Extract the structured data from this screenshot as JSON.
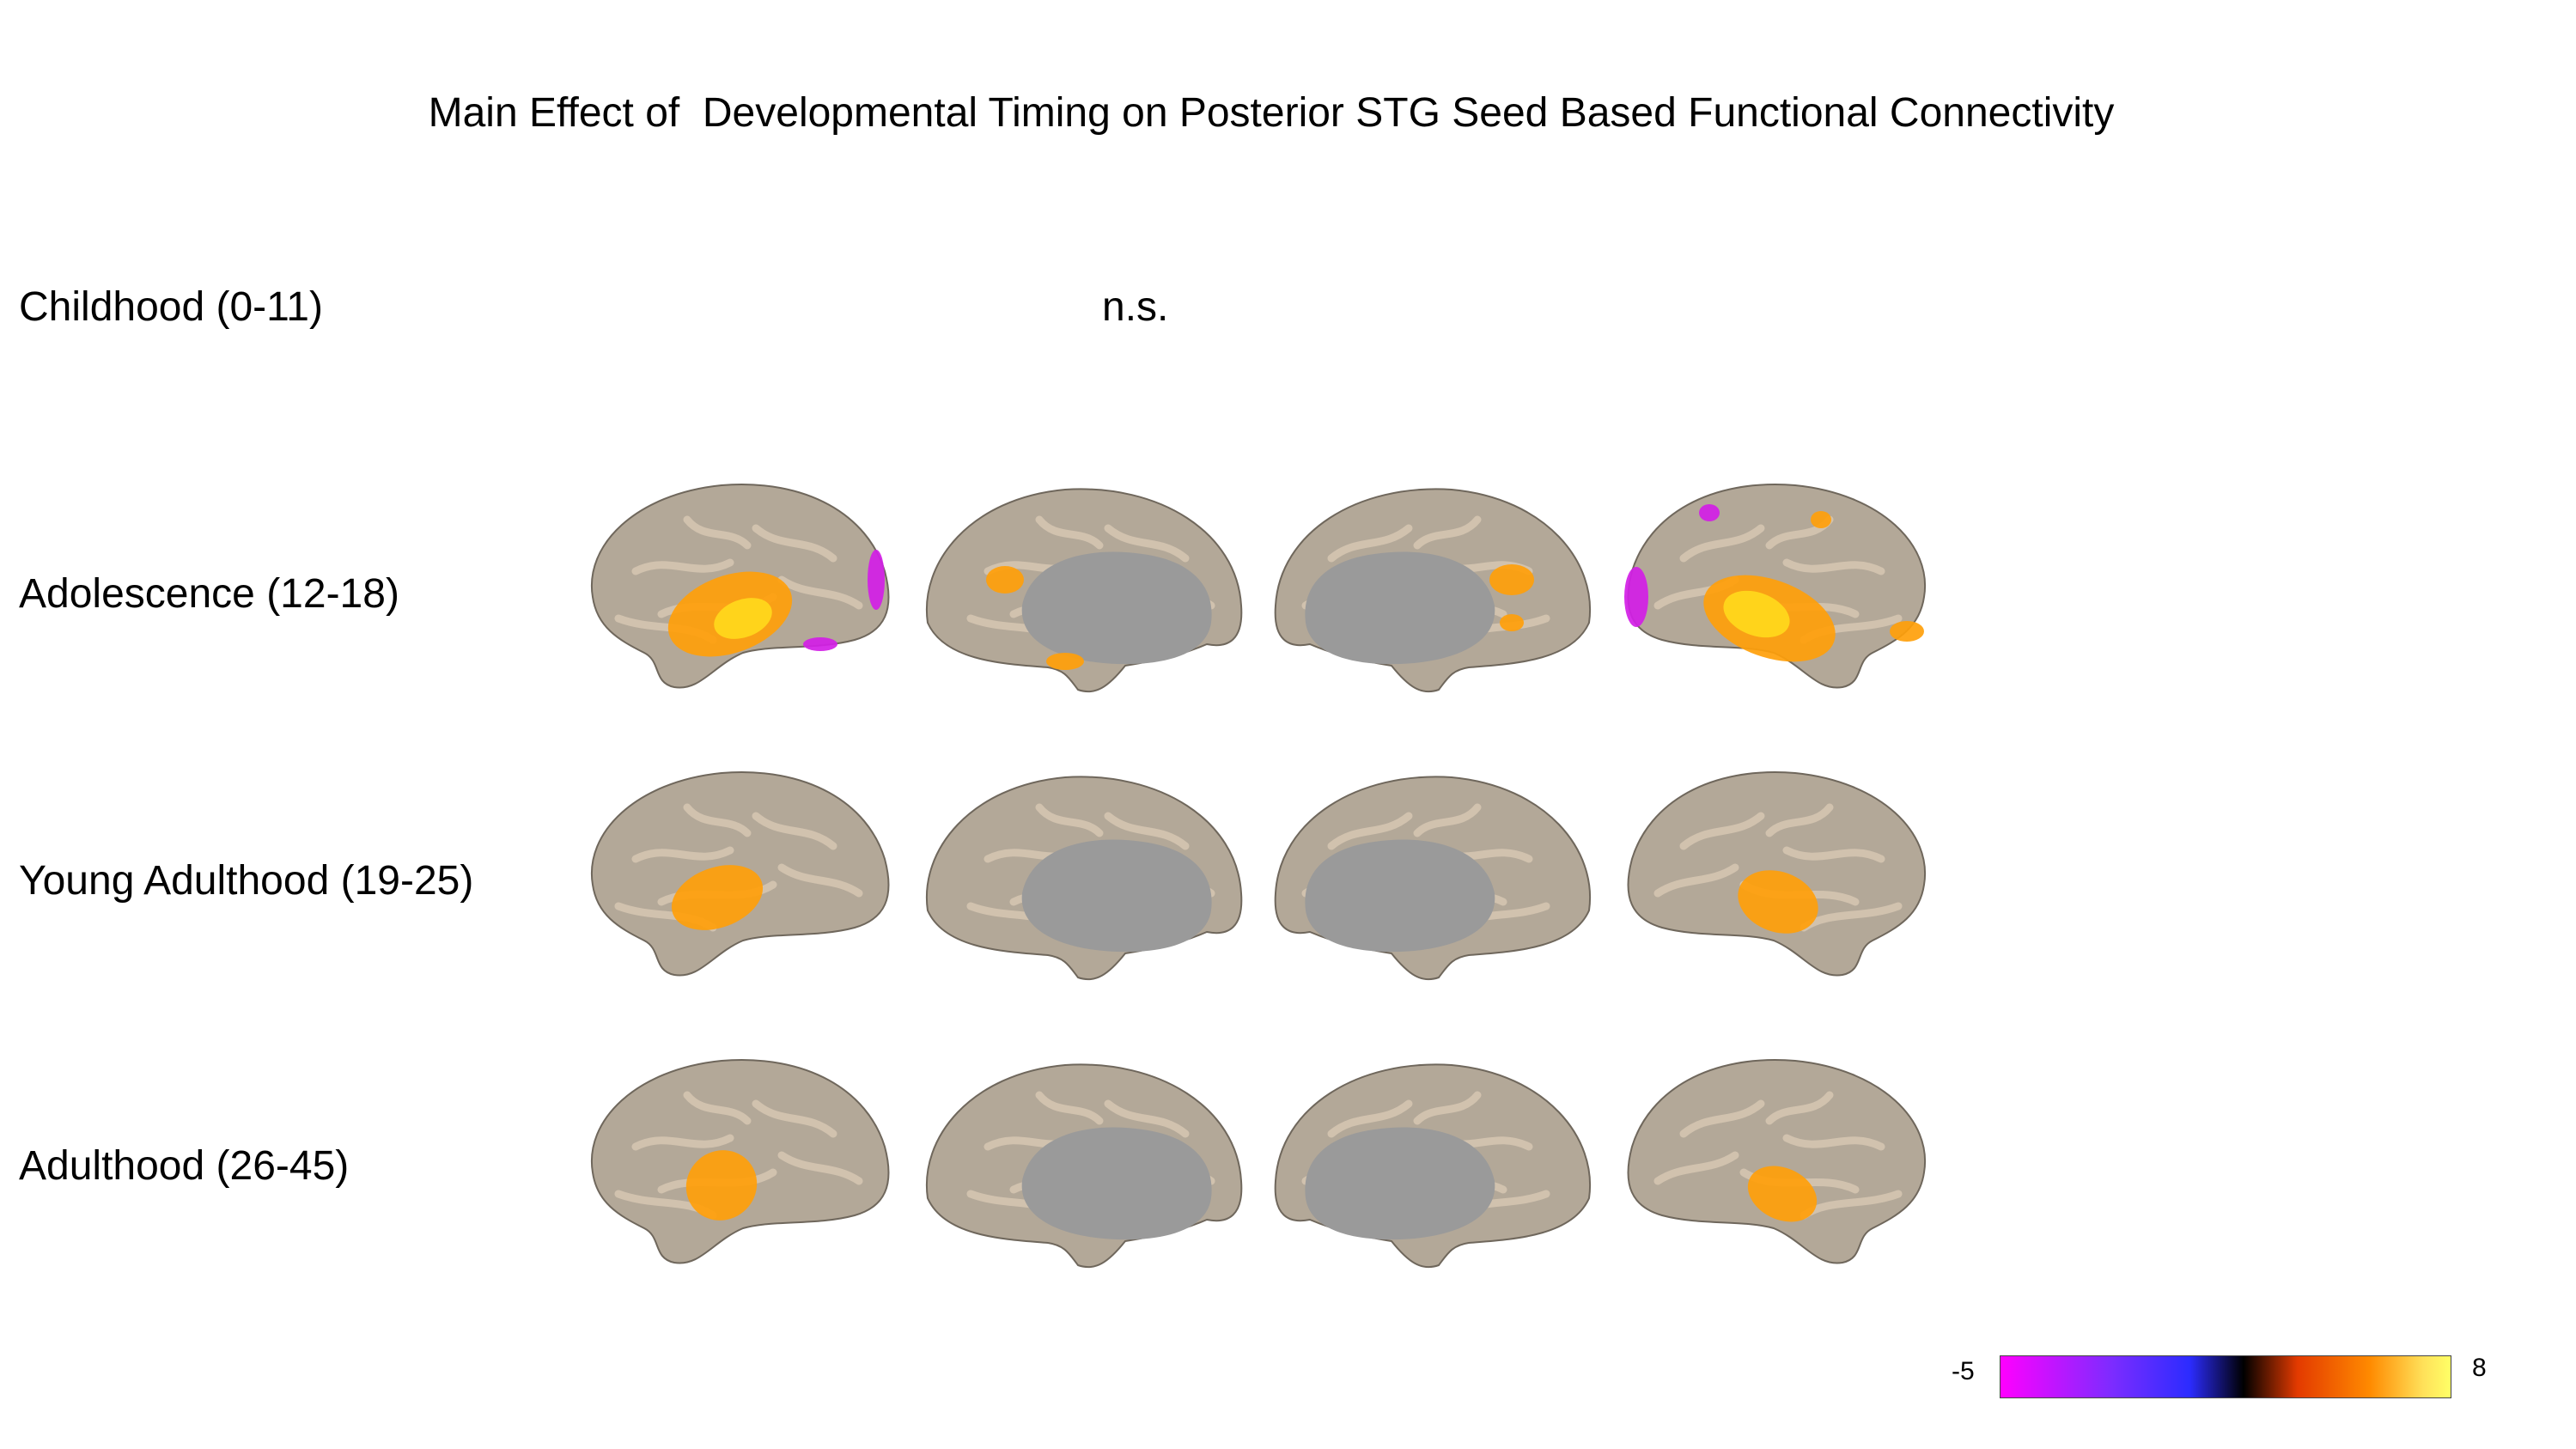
{
  "title": "Main Effect of  Developmental Timing on Posterior STG Seed Based Functional Connectivity",
  "rows": [
    {
      "label": "Childhood (0-11)",
      "result": "n.s."
    },
    {
      "label": "Adolescence (12-18)"
    },
    {
      "label": "Young Adulthood (19-25)"
    },
    {
      "label": "Adulthood (26-45)"
    }
  ],
  "colorbar": {
    "min_label": "-5",
    "max_label": "8",
    "colors": [
      "#ff00ff",
      "#2c2cff",
      "#000000",
      "#ff8a00",
      "#ffff66"
    ]
  },
  "colors": {
    "cortex": "#b3a898",
    "sulcus": "#d8c8b4",
    "medial_wall": "#9a9a9a",
    "positive": "#ff9f0a",
    "positive_peak": "#ffd81c",
    "negative": "#d21ee6"
  }
}
